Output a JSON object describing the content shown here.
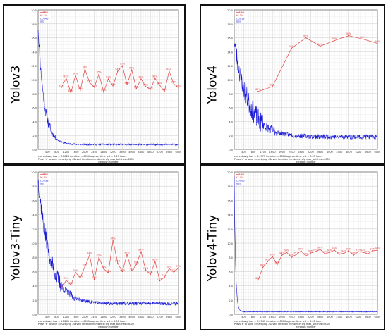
{
  "chart_data": [
    {
      "type": "line",
      "model_label": "Yolov3",
      "xlabel": "iteration number",
      "x_ticks": [
        "400",
        "800",
        "1200",
        "1600",
        "2000",
        "2400",
        "2800",
        "3200",
        "3600",
        "4000",
        "4400",
        "4800",
        "5200",
        "5600",
        "6000"
      ],
      "y_ticks": [
        "0.0",
        "2.0",
        "4.0",
        "6.0",
        "8.0",
        "10.0",
        "12.0",
        "14.0",
        "16.0",
        "18.0",
        "20.0"
      ],
      "xlim": [
        0,
        6000
      ],
      "ylim": [
        0,
        20
      ],
      "legend_lines": [
        "mAP%",
        "98.1%",
        "0.0045",
        "loss"
      ],
      "footer_lines": [
        "current avg loss = 0.8624   iteration = 6000   approx. time left = 0.25 hours",
        "Press 's' to save : chart.png - Saved      Iteration number      in cfg max_batches=6000"
      ],
      "series": [
        {
          "name": "loss",
          "color": "#1a1ad6",
          "kind": "loss",
          "profile": {
            "start": 17.5,
            "plateau": 0.7,
            "decay": 260,
            "noise": 0.35,
            "tail_noise": 0.12,
            "seed": 11
          }
        },
        {
          "name": "mAP%",
          "color": "#e04040",
          "kind": "map",
          "x": [
            1000,
            1200,
            1400,
            1600,
            1800,
            2000,
            2200,
            2400,
            2600,
            2800,
            3000,
            3200,
            3400,
            3600,
            3800,
            4000,
            4200,
            4400,
            4600,
            4800,
            5000,
            5200,
            5400,
            5600,
            5800,
            6000
          ],
          "values": [
            8.9,
            10.2,
            8.1,
            10.6,
            8.4,
            11.5,
            9.6,
            8.9,
            10.8,
            8.2,
            10.1,
            9.1,
            11.2,
            12.0,
            9.3,
            11.4,
            8.7,
            10.1,
            9.0,
            8.6,
            10.2,
            9.2,
            8.3,
            11.2,
            9.4,
            8.8
          ],
          "labels": [
            "87%",
            "92%",
            "85%",
            "94%",
            "86%",
            "96%",
            "90%",
            "88%",
            "95%",
            "87%",
            "91%",
            "89%",
            "94%",
            "97%",
            "89%",
            "94%",
            "87%",
            "91%",
            "88%",
            "87%",
            "91%",
            "89%",
            "86%",
            "94%",
            "90%",
            "88%"
          ]
        }
      ]
    },
    {
      "type": "line",
      "model_label": "Yolov4",
      "xlabel": "iteration number",
      "x_ticks": [
        "400",
        "800",
        "1200",
        "1600",
        "2000",
        "2400",
        "2800",
        "3200",
        "3600",
        "4000",
        "4400",
        "4800",
        "5200",
        "5600",
        "6000"
      ],
      "y_ticks": [
        "0.0",
        "2.0",
        "4.0",
        "6.0",
        "8.0",
        "10.0",
        "12.0",
        "14.0",
        "16.0",
        "18.0",
        "20.0"
      ],
      "xlim": [
        0,
        6000
      ],
      "ylim": [
        0,
        20
      ],
      "legend_lines": [
        "mAP%",
        "98.5%",
        "0.0013",
        "loss"
      ],
      "footer_lines": [
        "current avg loss = 1.9975   iteration = 6000   approx. time left = 0.35 hours",
        "Press 's' to save : chart.png - Saved      Iteration number      in cfg max_batches=6000"
      ],
      "series": [
        {
          "name": "loss",
          "color": "#1a1ad6",
          "kind": "loss",
          "profile": {
            "start": 15.5,
            "plateau": 1.8,
            "decay": 600,
            "noise": 0.7,
            "tail_noise": 0.35,
            "seed": 23
          }
        },
        {
          "name": "mAP%",
          "color": "#e04040",
          "kind": "map",
          "x": [
            1000,
            1600,
            2400,
            3000,
            3600,
            4200,
            4800,
            5400,
            6000
          ],
          "values": [
            8.3,
            9.0,
            14.5,
            16.0,
            14.8,
            15.6,
            16.3,
            15.8,
            15.2
          ],
          "labels": [
            "82%",
            "85%",
            "93%",
            "97%",
            "94%",
            "96%",
            "98%",
            "96%",
            "95%"
          ]
        }
      ]
    },
    {
      "type": "line",
      "model_label": "Yolov3-Tiny",
      "xlabel": "iteration number",
      "x_ticks": [
        "400",
        "800",
        "1200",
        "1600",
        "2000",
        "2400",
        "2800",
        "3200",
        "3600",
        "4000",
        "4400",
        "4800",
        "5200",
        "5600",
        "6000"
      ],
      "y_ticks": [
        "0.0",
        "2.0",
        "4.0",
        "6.0",
        "8.0",
        "10.0",
        "12.0",
        "14.0",
        "16.0",
        "18.0",
        "20.0"
      ],
      "xlim": [
        0,
        6000
      ],
      "ylim": [
        0,
        20
      ],
      "legend_lines": [
        "mAP%",
        "86.8%",
        "0.0038",
        "loss"
      ],
      "footer_lines": [
        "current avg loss = 1.6265   iteration = 6000   approx. time left = 0.08 hours",
        "Press 's' to save : chart.png - Saved      Iteration number      in cfg max_batches=6000"
      ],
      "series": [
        {
          "name": "loss",
          "color": "#1a1ad6",
          "kind": "loss",
          "profile": {
            "start": 19.0,
            "plateau": 1.5,
            "decay": 520,
            "noise": 0.55,
            "tail_noise": 0.25,
            "seed": 37
          }
        },
        {
          "name": "mAP%",
          "color": "#e04040",
          "kind": "map",
          "x": [
            1000,
            1200,
            1400,
            1600,
            1800,
            2000,
            2200,
            2400,
            2600,
            2800,
            3000,
            3200,
            3400,
            3600,
            3800,
            4000,
            4200,
            4400,
            4600,
            4800,
            5000,
            5200,
            5400,
            5600,
            5800,
            6000
          ],
          "values": [
            3.6,
            4.8,
            4.1,
            5.9,
            5.1,
            6.7,
            8.3,
            4.9,
            8.0,
            6.4,
            5.8,
            10.4,
            7.2,
            6.0,
            8.4,
            6.1,
            7.0,
            8.8,
            6.2,
            5.6,
            7.4,
            4.7,
            5.2,
            6.4,
            5.9,
            6.5
          ],
          "labels": [
            "68%",
            "75%",
            "71%",
            "79%",
            "74%",
            "81%",
            "84%",
            "72%",
            "83%",
            "78%",
            "76%",
            "86%",
            "80%",
            "77%",
            "83%",
            "77%",
            "79%",
            "84%",
            "78%",
            "76%",
            "80%",
            "72%",
            "74%",
            "78%",
            "77%",
            "79%"
          ]
        }
      ]
    },
    {
      "type": "line",
      "model_label": "Yolov4-Tiny",
      "xlabel": "iteration number",
      "x_ticks": [
        "400",
        "800",
        "1200",
        "1600",
        "2000",
        "2400",
        "2800",
        "3200",
        "3600",
        "4000",
        "4400",
        "4800",
        "5200",
        "5600",
        "6000"
      ],
      "y_ticks": [
        "0.0",
        "2.0",
        "4.0",
        "6.0",
        "8.0",
        "10.0",
        "12.0",
        "14.0",
        "16.0",
        "18.0",
        "20.0"
      ],
      "xlim": [
        0,
        6000
      ],
      "ylim": [
        0,
        20
      ],
      "legend_lines": [
        "mAP%",
        "97.0%",
        "0.0006",
        "loss"
      ],
      "footer_lines": [
        "current avg loss = 0.2341   iteration = 6000   approx. time left = 0.01 hours",
        "Press 's' to save : chart.png - Saved      Iteration number      in cfg max_batches=6000"
      ],
      "series": [
        {
          "name": "loss",
          "color": "#1a1ad6",
          "kind": "loss",
          "profile": {
            "start": 19.5,
            "plateau": 0.35,
            "decay": 55,
            "noise": 0.12,
            "tail_noise": 0.05,
            "seed": 53
          }
        },
        {
          "name": "mAP%",
          "color": "#e04040",
          "kind": "map",
          "x": [
            1000,
            1200,
            1400,
            1600,
            1800,
            2000,
            2200,
            2400,
            2600,
            2800,
            3000,
            3200,
            3400,
            3600,
            3800,
            4000,
            4200,
            4400,
            4600,
            4800,
            5000,
            5200,
            5400,
            5600,
            5800,
            6000
          ],
          "values": [
            4.8,
            6.6,
            7.4,
            8.1,
            7.0,
            8.3,
            8.7,
            8.0,
            8.4,
            8.9,
            8.2,
            8.6,
            8.8,
            9.1,
            8.5,
            8.7,
            9.0,
            8.4,
            8.6,
            8.9,
            8.3,
            8.8,
            8.7,
            8.5,
            8.9,
            9.0
          ],
          "labels": [
            "82%",
            "89%",
            "91%",
            "93%",
            "90%",
            "94%",
            "95%",
            "93%",
            "94%",
            "95%",
            "93%",
            "94%",
            "95%",
            "96%",
            "94%",
            "95%",
            "95%",
            "94%",
            "94%",
            "95%",
            "93%",
            "95%",
            "94%",
            "94%",
            "95%",
            "96%"
          ]
        }
      ]
    }
  ]
}
